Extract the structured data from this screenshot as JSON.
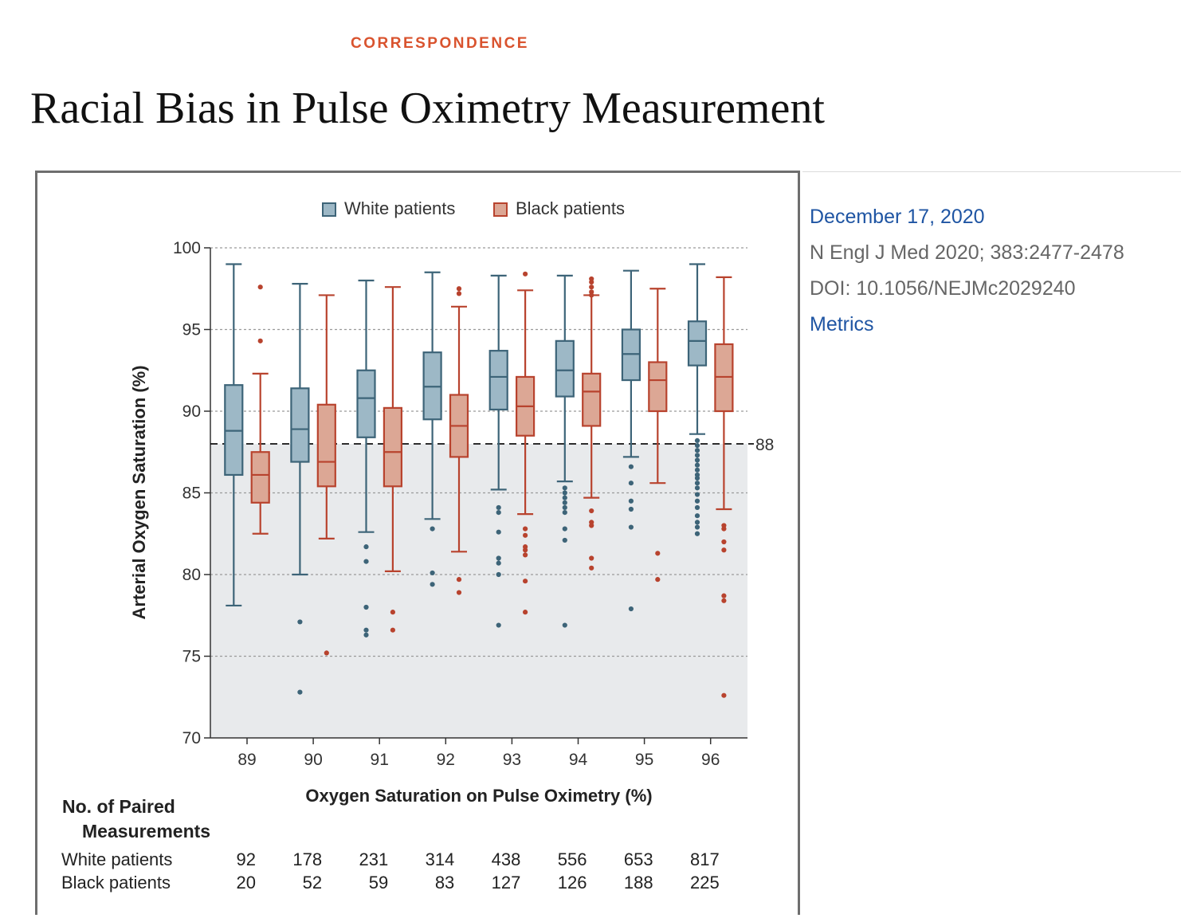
{
  "page": {
    "section": "CORRESPONDENCE",
    "title": "Racial Bias in Pulse Oximetry Measurement",
    "date": "December 17, 2020",
    "citation": "N Engl J Med 2020; 383:2477-2478",
    "doi": "DOI: 10.1056/NEJMc2029240",
    "metrics_link": "Metrics"
  },
  "colors": {
    "white_stroke": "#3d6478",
    "white_fill": "#9db8c6",
    "black_stroke": "#b8432e",
    "black_fill": "#dca795",
    "shade": "#e8eaec"
  },
  "chart_data": {
    "type": "box",
    "xlabel": "Oxygen Saturation on Pulse Oximetry (%)",
    "ylabel": "Arterial Oxygen Saturation (%)",
    "ylim": [
      70,
      100
    ],
    "yticks": [
      70,
      75,
      80,
      85,
      90,
      95,
      100
    ],
    "categories": [
      "89",
      "90",
      "91",
      "92",
      "93",
      "94",
      "95",
      "96"
    ],
    "threshold": {
      "value": 88,
      "label": "88"
    },
    "legend": [
      "White patients",
      "Black patients"
    ],
    "series": [
      {
        "name": "White patients",
        "boxes": [
          {
            "whislo": 78.1,
            "q1": 86.1,
            "med": 88.8,
            "q3": 91.6,
            "whishi": 99.0,
            "fliers": []
          },
          {
            "whislo": 80.0,
            "q1": 86.9,
            "med": 88.9,
            "q3": 91.4,
            "whishi": 97.8,
            "fliers": [
              77.1,
              72.8
            ]
          },
          {
            "whislo": 82.6,
            "q1": 88.4,
            "med": 90.8,
            "q3": 92.5,
            "whishi": 98.0,
            "fliers": [
              81.7,
              80.8,
              78.0,
              76.6,
              76.3
            ]
          },
          {
            "whislo": 83.4,
            "q1": 89.5,
            "med": 91.5,
            "q3": 93.6,
            "whishi": 98.5,
            "fliers": [
              82.8,
              80.1,
              79.4
            ]
          },
          {
            "whislo": 85.2,
            "q1": 90.1,
            "med": 92.1,
            "q3": 93.7,
            "whishi": 98.3,
            "fliers": [
              84.1,
              83.8,
              82.6,
              81.0,
              80.7,
              80.0,
              76.9
            ]
          },
          {
            "whislo": 85.7,
            "q1": 90.9,
            "med": 92.5,
            "q3": 94.3,
            "whishi": 98.3,
            "fliers": [
              85.3,
              85.0,
              84.7,
              84.4,
              84.1,
              83.8,
              82.8,
              82.1,
              76.9
            ]
          },
          {
            "whislo": 87.2,
            "q1": 91.9,
            "med": 93.5,
            "q3": 95.0,
            "whishi": 98.6,
            "fliers": [
              86.6,
              85.6,
              84.5,
              84.0,
              82.9,
              77.9
            ]
          },
          {
            "whislo": 88.6,
            "q1": 92.8,
            "med": 94.3,
            "q3": 95.5,
            "whishi": 99.0,
            "fliers": [
              88.2,
              87.9,
              87.6,
              87.3,
              87.0,
              86.7,
              86.4,
              86.1,
              85.9,
              85.6,
              85.3,
              84.9,
              84.5,
              84.1,
              83.6,
              83.2,
              82.9,
              82.5
            ]
          }
        ]
      },
      {
        "name": "Black patients",
        "boxes": [
          {
            "whislo": 82.5,
            "q1": 84.4,
            "med": 86.1,
            "q3": 87.5,
            "whishi": 92.3,
            "fliers": [
              97.6,
              94.3
            ]
          },
          {
            "whislo": 82.2,
            "q1": 85.4,
            "med": 86.9,
            "q3": 90.4,
            "whishi": 97.1,
            "fliers": [
              75.2
            ]
          },
          {
            "whislo": 80.2,
            "q1": 85.4,
            "med": 87.5,
            "q3": 90.2,
            "whishi": 97.6,
            "fliers": [
              77.7,
              76.6
            ]
          },
          {
            "whislo": 81.4,
            "q1": 87.2,
            "med": 89.1,
            "q3": 91.0,
            "whishi": 96.4,
            "fliers": [
              97.5,
              97.2,
              79.7,
              78.9
            ]
          },
          {
            "whislo": 83.7,
            "q1": 88.5,
            "med": 90.3,
            "q3": 92.1,
            "whishi": 97.4,
            "fliers": [
              98.4,
              82.8,
              82.4,
              81.7,
              81.5,
              81.2,
              79.6,
              77.7
            ]
          },
          {
            "whislo": 84.7,
            "q1": 89.1,
            "med": 91.2,
            "q3": 92.3,
            "whishi": 97.1,
            "fliers": [
              98.1,
              97.9,
              97.6,
              97.3,
              97.1,
              83.9,
              83.2,
              83.0,
              81.0,
              80.4
            ]
          },
          {
            "whislo": 85.6,
            "q1": 90.0,
            "med": 91.9,
            "q3": 93.0,
            "whishi": 97.5,
            "fliers": [
              81.3,
              79.7
            ]
          },
          {
            "whislo": 84.0,
            "q1": 90.0,
            "med": 92.1,
            "q3": 94.1,
            "whishi": 98.2,
            "fliers": [
              83.0,
              82.8,
              82.0,
              81.5,
              78.7,
              78.4,
              72.6
            ]
          }
        ]
      }
    ],
    "counts": {
      "header_line1": "No. of Paired",
      "header_line2": "Measurements",
      "white_label": "White patients",
      "black_label": "Black patients",
      "white": [
        "92",
        "178",
        "231",
        "314",
        "438",
        "556",
        "653",
        "817"
      ],
      "black": [
        "20",
        "52",
        "59",
        "83",
        "127",
        "126",
        "188",
        "225"
      ]
    }
  }
}
